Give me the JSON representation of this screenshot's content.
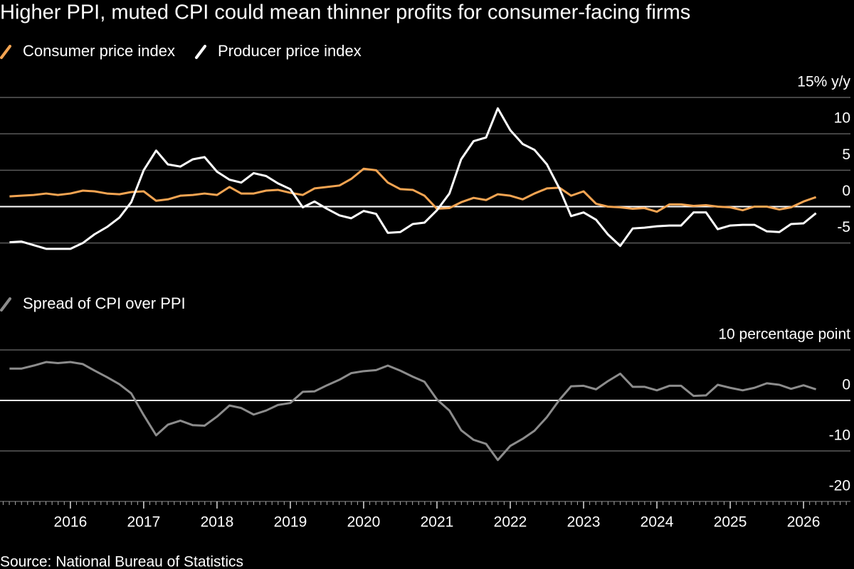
{
  "title": "Higher PPI, muted CPI could mean thinner profits for consumer-facing firms",
  "source": "Source: National Bureau of Statistics",
  "chart_data": [
    {
      "type": "line",
      "x": [
        2015.17,
        2015.33,
        2015.5,
        2015.67,
        2015.83,
        2016.0,
        2016.17,
        2016.33,
        2016.5,
        2016.67,
        2016.83,
        2017.0,
        2017.17,
        2017.33,
        2017.5,
        2017.67,
        2017.83,
        2018.0,
        2018.17,
        2018.33,
        2018.5,
        2018.67,
        2018.83,
        2019.0,
        2019.17,
        2019.33,
        2019.5,
        2019.67,
        2019.83,
        2020.0,
        2020.17,
        2020.33,
        2020.5,
        2020.67,
        2020.83,
        2021.0,
        2021.17,
        2021.33,
        2021.5,
        2021.67,
        2021.83,
        2022.0,
        2022.17,
        2022.33,
        2022.5,
        2022.67,
        2022.83,
        2023.0,
        2023.17,
        2023.33,
        2023.5,
        2023.67,
        2023.83,
        2024.0,
        2024.17,
        2024.33,
        2024.5,
        2024.67,
        2024.83,
        2025.0,
        2025.17,
        2025.33,
        2025.5,
        2025.67,
        2025.83,
        2026.0,
        2026.17
      ],
      "series": [
        {
          "name": "Consumer price index",
          "color": "#f3a452",
          "values": [
            1.4,
            1.5,
            1.6,
            1.8,
            1.6,
            1.8,
            2.2,
            2.1,
            1.8,
            1.7,
            2.0,
            2.1,
            0.8,
            1.0,
            1.5,
            1.6,
            1.8,
            1.6,
            2.7,
            1.8,
            1.8,
            2.2,
            2.3,
            1.9,
            1.6,
            2.5,
            2.7,
            2.9,
            3.8,
            5.2,
            5.0,
            3.3,
            2.4,
            2.3,
            1.5,
            -0.3,
            -0.2,
            0.6,
            1.2,
            0.9,
            1.7,
            1.5,
            1.0,
            1.8,
            2.5,
            2.6,
            1.5,
            2.1,
            0.4,
            0.0,
            -0.1,
            -0.3,
            -0.2,
            -0.7,
            0.3,
            0.3,
            0.1,
            0.2,
            0.0,
            -0.1,
            -0.5,
            0.0,
            0.0,
            -0.4,
            -0.1,
            0.7,
            1.3
          ]
        },
        {
          "name": "Producer price index",
          "color": "#ffffff",
          "values": [
            -4.9,
            -4.8,
            -5.3,
            -5.8,
            -5.8,
            -5.8,
            -5.0,
            -3.8,
            -2.8,
            -1.5,
            0.6,
            5.0,
            7.7,
            5.8,
            5.5,
            6.5,
            6.8,
            4.8,
            3.7,
            3.3,
            4.6,
            4.2,
            3.2,
            2.4,
            -0.1,
            0.7,
            -0.3,
            -1.2,
            -1.6,
            -0.6,
            -1.0,
            -3.6,
            -3.5,
            -2.4,
            -2.2,
            -0.5,
            1.8,
            6.5,
            9.0,
            9.5,
            13.5,
            10.5,
            8.6,
            7.8,
            5.8,
            2.5,
            -1.3,
            -0.8,
            -1.8,
            -3.8,
            -5.4,
            -3.0,
            -2.9,
            -2.7,
            -2.6,
            -2.6,
            -0.8,
            -0.8,
            -3.1,
            -2.6,
            -2.5,
            -2.5,
            -3.4,
            -3.5,
            -2.4,
            -2.3,
            -0.9
          ]
        }
      ],
      "xlim": [
        2015.04,
        2026.64
      ],
      "ylim": [
        -6.5,
        15
      ],
      "yticks": [
        {
          "value": 15,
          "label": "15% y/y"
        },
        10,
        5,
        0,
        -5
      ]
    },
    {
      "type": "line",
      "x": [
        2015.17,
        2015.33,
        2015.5,
        2015.67,
        2015.83,
        2016.0,
        2016.17,
        2016.33,
        2016.5,
        2016.67,
        2016.83,
        2017.0,
        2017.17,
        2017.33,
        2017.5,
        2017.67,
        2017.83,
        2018.0,
        2018.17,
        2018.33,
        2018.5,
        2018.67,
        2018.83,
        2019.0,
        2019.17,
        2019.33,
        2019.5,
        2019.67,
        2019.83,
        2020.0,
        2020.17,
        2020.33,
        2020.5,
        2020.67,
        2020.83,
        2021.0,
        2021.17,
        2021.33,
        2021.5,
        2021.67,
        2021.83,
        2022.0,
        2022.17,
        2022.33,
        2022.5,
        2022.67,
        2022.83,
        2023.0,
        2023.17,
        2023.33,
        2023.5,
        2023.67,
        2023.83,
        2024.0,
        2024.17,
        2024.33,
        2024.5,
        2024.67,
        2024.83,
        2025.0,
        2025.17,
        2025.33,
        2025.5,
        2025.67,
        2025.83,
        2026.0,
        2026.17
      ],
      "series": [
        {
          "name": "Spread of CPI over PPI",
          "color": "#8c8c8c",
          "values": [
            6.3,
            6.3,
            6.9,
            7.6,
            7.4,
            7.6,
            7.2,
            5.9,
            4.6,
            3.2,
            1.4,
            -2.9,
            -6.9,
            -4.8,
            -4.0,
            -4.9,
            -5.0,
            -3.2,
            -1.0,
            -1.5,
            -2.8,
            -2.0,
            -0.9,
            -0.5,
            1.7,
            1.8,
            3.0,
            4.1,
            5.4,
            5.8,
            6.0,
            6.9,
            5.9,
            4.7,
            3.7,
            0.2,
            -2.0,
            -5.9,
            -7.8,
            -8.6,
            -11.8,
            -9.0,
            -7.6,
            -6.0,
            -3.3,
            0.1,
            2.8,
            2.9,
            2.2,
            3.8,
            5.3,
            2.7,
            2.7,
            2.0,
            2.9,
            2.9,
            0.9,
            1.0,
            3.1,
            2.5,
            2.0,
            2.5,
            3.4,
            3.1,
            2.3,
            3.0,
            2.2
          ]
        }
      ],
      "xlim": [
        2015.04,
        2026.64
      ],
      "xticks": [
        2016,
        2017,
        2018,
        2019,
        2020,
        2021,
        2022,
        2023,
        2024,
        2025,
        2026
      ],
      "ylim": [
        -20,
        10
      ],
      "yticks": [
        {
          "value": 10,
          "label": "10 percentage point"
        },
        0,
        -10,
        -20
      ]
    }
  ]
}
